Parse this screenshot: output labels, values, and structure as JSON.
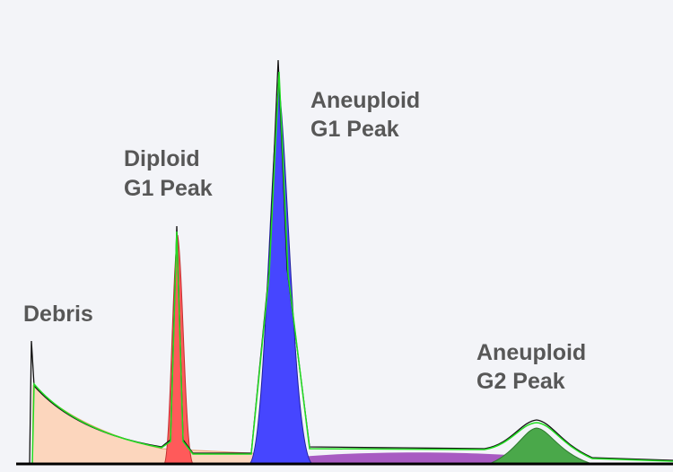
{
  "labels": [
    {
      "lines": [
        "Debris"
      ]
    },
    {
      "lines": [
        "Diploid",
        "G1 Peak"
      ]
    },
    {
      "lines": [
        "Aneuploid",
        "G1 Peak"
      ]
    },
    {
      "lines": [
        "Aneuploid",
        "G2 Peak"
      ]
    }
  ]
}
